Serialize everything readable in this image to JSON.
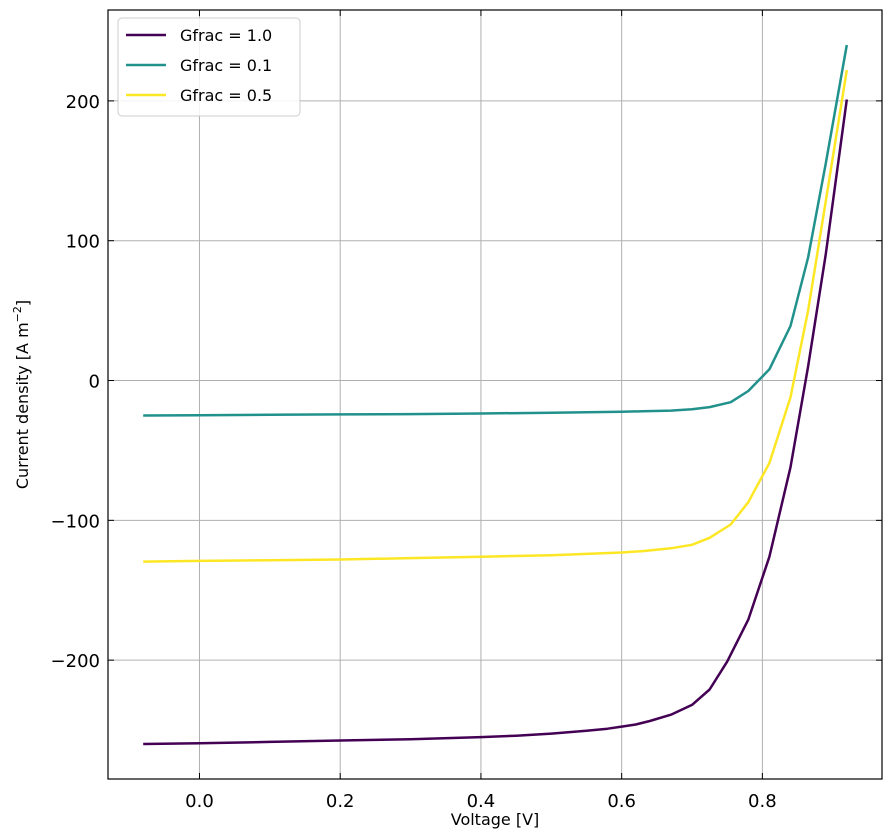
{
  "chart_data": {
    "type": "line",
    "xlabel": "Voltage [V]",
    "ylabel": "Current density [A m",
    "ylabel_sup": "−2",
    "ylabel_end": "]",
    "xlim": [
      -0.13,
      0.97
    ],
    "ylim": [
      -285,
      265
    ],
    "x_ticks": [
      0.0,
      0.2,
      0.4,
      0.6,
      0.8
    ],
    "x_tick_labels": [
      "0.0",
      "0.2",
      "0.4",
      "0.6",
      "0.8"
    ],
    "y_ticks": [
      -200,
      -100,
      0,
      100,
      200
    ],
    "y_tick_labels": [
      "−200",
      "−100",
      "0",
      "100",
      "200"
    ],
    "grid": true,
    "legend_position": "top-left",
    "series": [
      {
        "name": "Gfrac = 1.0",
        "color": "#440154",
        "x": [
          -0.08,
          0.0,
          0.1,
          0.2,
          0.3,
          0.4,
          0.45,
          0.5,
          0.55,
          0.58,
          0.6,
          0.62,
          0.64,
          0.67,
          0.7,
          0.725,
          0.75,
          0.78,
          0.81,
          0.84,
          0.865,
          0.89,
          0.92
        ],
        "y": [
          -260,
          -259.5,
          -258.5,
          -257.5,
          -256.5,
          -255,
          -254,
          -252.5,
          -250.5,
          -249,
          -247.5,
          -246,
          -243.5,
          -239,
          -232,
          -221,
          -201,
          -171,
          -126,
          -62,
          10,
          90,
          201
        ]
      },
      {
        "name": "Gfrac = 0.1",
        "color": "#21918c",
        "x": [
          -0.08,
          0.0,
          0.1,
          0.2,
          0.3,
          0.4,
          0.5,
          0.55,
          0.6,
          0.63,
          0.67,
          0.7,
          0.725,
          0.755,
          0.78,
          0.81,
          0.84,
          0.865,
          0.89,
          0.92
        ],
        "y": [
          -25,
          -24.8,
          -24.5,
          -24.2,
          -24,
          -23.6,
          -23,
          -22.7,
          -22.3,
          -22,
          -21.5,
          -20.5,
          -19,
          -15.5,
          -7.5,
          8,
          39,
          88,
          155,
          240
        ]
      },
      {
        "name": "Gfrac = 0.5",
        "color": "#fde725",
        "x": [
          -0.08,
          0.0,
          0.1,
          0.2,
          0.3,
          0.4,
          0.5,
          0.55,
          0.6,
          0.63,
          0.67,
          0.7,
          0.725,
          0.755,
          0.78,
          0.81,
          0.84,
          0.865,
          0.89,
          0.92
        ],
        "y": [
          -129.5,
          -129,
          -128.5,
          -128,
          -127,
          -126,
          -125,
          -124,
          -123,
          -122,
          -120,
          -117.5,
          -112.5,
          -103,
          -87,
          -59,
          -12,
          50,
          128,
          222
        ]
      }
    ]
  }
}
